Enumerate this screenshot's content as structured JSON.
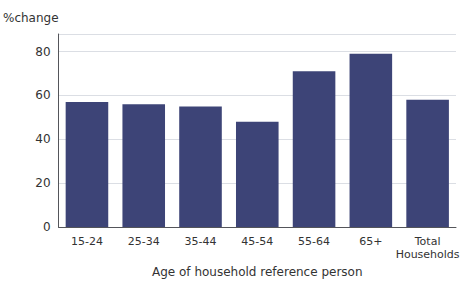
{
  "chart_data": {
    "type": "bar",
    "categories": [
      "15-24",
      "25-34",
      "35-44",
      "45-54",
      "55-64",
      "65+",
      "Total\nHouseholds"
    ],
    "values": [
      57,
      56,
      55,
      48,
      71,
      79,
      58
    ],
    "color": "#3d4477",
    "ylabel": "%change",
    "xlabel": "Age of household reference person",
    "ylim": [
      0,
      88
    ],
    "yticks": [
      0,
      20,
      40,
      60,
      80
    ],
    "grid": true
  }
}
